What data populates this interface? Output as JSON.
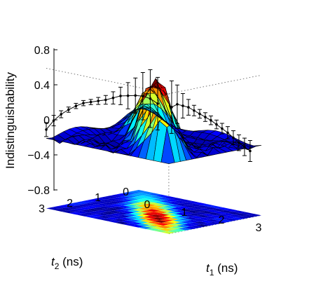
{
  "chart_data": {
    "type": "surface3d",
    "title": "",
    "zlabel": "Indistinguishability",
    "xlabel": {
      "symbol": "t",
      "subscript": "1",
      "unit": " (ns)"
    },
    "ylabel": {
      "symbol": "t",
      "subscript": "2",
      "unit": " (ns)"
    },
    "zlim": [
      -0.8,
      0.8
    ],
    "xlim": [
      0,
      3.3
    ],
    "ylim": [
      0,
      3.3
    ],
    "z_ticks": [
      {
        "value": 0.8,
        "label": "0.8"
      },
      {
        "value": 0.4,
        "label": "0.4"
      },
      {
        "value": 0,
        "label": "0"
      },
      {
        "value": -0.4,
        "label": "−0.4"
      },
      {
        "value": -0.8,
        "label": "−0.8"
      }
    ],
    "x_ticks": [
      {
        "value": 0,
        "label": "0"
      },
      {
        "value": 1,
        "label": "1"
      },
      {
        "value": 2,
        "label": "2"
      },
      {
        "value": 3,
        "label": "3"
      }
    ],
    "y_ticks": [
      {
        "value": 0,
        "label": "0"
      },
      {
        "value": 1,
        "label": "1"
      },
      {
        "value": 2,
        "label": "2"
      },
      {
        "value": 3,
        "label": "3"
      }
    ],
    "grid_size": 16,
    "colormap": [
      "#00008f",
      "#0000ff",
      "#0080ff",
      "#00ffff",
      "#80ff80",
      "#ffff00",
      "#ff8000",
      "#ff0000",
      "#800000"
    ],
    "projection_xz": [
      {
        "x": 0.0,
        "z": 0.1,
        "err": 0.08
      },
      {
        "x": 0.2,
        "z": 0.22,
        "err": 0.06
      },
      {
        "x": 0.4,
        "z": 0.31,
        "err": 0.04
      },
      {
        "x": 0.6,
        "z": 0.38,
        "err": 0.03
      },
      {
        "x": 0.8,
        "z": 0.44,
        "err": 0.03
      },
      {
        "x": 1.0,
        "z": 0.49,
        "err": 0.03
      },
      {
        "x": 1.2,
        "z": 0.52,
        "err": 0.03
      },
      {
        "x": 1.4,
        "z": 0.55,
        "err": 0.04
      },
      {
        "x": 1.6,
        "z": 0.58,
        "err": 0.05
      },
      {
        "x": 1.8,
        "z": 0.62,
        "err": 0.07
      },
      {
        "x": 2.0,
        "z": 0.66,
        "err": 0.1
      },
      {
        "x": 2.2,
        "z": 0.68,
        "err": 0.15
      },
      {
        "x": 2.4,
        "z": 0.7,
        "err": 0.2
      },
      {
        "x": 2.6,
        "z": 0.71,
        "err": 0.27
      },
      {
        "x": 2.8,
        "z": 0.7,
        "err": 0.33
      },
      {
        "x": 3.0,
        "z": 0.66,
        "err": 0.3
      }
    ],
    "projection_yz": [
      {
        "y": 3.2,
        "z": 0.64,
        "err": 0.3
      },
      {
        "y": 3.0,
        "z": 0.66,
        "err": 0.22
      },
      {
        "y": 2.8,
        "z": 0.63,
        "err": 0.14
      },
      {
        "y": 2.6,
        "z": 0.6,
        "err": 0.09
      },
      {
        "y": 2.4,
        "z": 0.55,
        "err": 0.06
      },
      {
        "y": 2.2,
        "z": 0.5,
        "err": 0.05
      },
      {
        "y": 2.0,
        "z": 0.45,
        "err": 0.05
      },
      {
        "y": 1.8,
        "z": 0.4,
        "err": 0.05
      },
      {
        "y": 1.6,
        "z": 0.34,
        "err": 0.05
      },
      {
        "y": 1.4,
        "z": 0.28,
        "err": 0.06
      },
      {
        "y": 1.2,
        "z": 0.22,
        "err": 0.07
      },
      {
        "y": 1.0,
        "z": 0.15,
        "err": 0.08
      },
      {
        "y": 0.8,
        "z": 0.08,
        "err": 0.09
      },
      {
        "y": 0.6,
        "z": 0.02,
        "err": 0.1
      },
      {
        "y": 0.4,
        "z": -0.04,
        "err": 0.12
      }
    ],
    "grid": true,
    "box": "open, dotted back planes"
  }
}
